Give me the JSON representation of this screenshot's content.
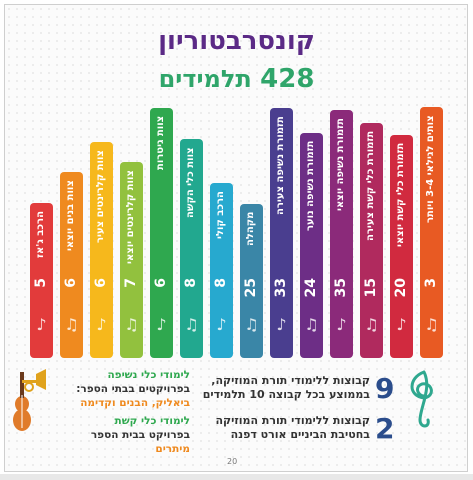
{
  "title": "קונסרבטוריון",
  "subtitle": {
    "number": "428",
    "text": "תלמידים"
  },
  "page_number": "20",
  "notes": {
    "woodwind_title": "לימודי כלי נשיפה",
    "woodwind_text1": "בפרויקטים בבתי הספר:",
    "woodwind_highlight": "ביאליק, הבנים וקדימה",
    "strings_title": "לימודי כלי קשת",
    "strings_text1": "בפרויקט בבית הספר",
    "strings_highlight": "מיתרים",
    "theory1_number": "9",
    "theory1_line1": "קבוצות ללימודי תורת המוזיקה,",
    "theory1_line2_a": "בממוצע בכל קבוצה",
    "theory1_line2_num": "10",
    "theory1_line2_b": "תלמידים",
    "theory2_number": "2",
    "theory2_line1": "קבוצות ללימודי תורת המוזיקה",
    "theory2_line2": "בחטיבת הביניים אורט דפנה"
  },
  "chart_data": {
    "type": "bar",
    "title": "קונסרבטוריון",
    "subtitle": "428 תלמידים",
    "categories": [
      "הרכב ג'אז",
      "צוות בנים יוצאי",
      "צוות קלרינטים צעיר",
      "צוות קלרינטים יוצאי",
      "צוות גיטרות",
      "צוות כלי הקשה",
      "הרכב קולי",
      "מקהלה",
      "תזמורת נשיפה צעירה",
      "תזמורת נשיפה נוער",
      "תזמורת נשיפה יוצאי",
      "תזמורת כלי קשת צעירה",
      "תזמורת כלי קשת יוצאי",
      "צותים לגילאי 3-4 ויותר"
    ],
    "values": [
      5,
      6,
      6,
      7,
      6,
      8,
      8,
      25,
      33,
      24,
      35,
      15,
      20,
      3
    ],
    "colors": [
      "#e23b3b",
      "#ef8a1f",
      "#f6b81c",
      "#92c13e",
      "#2fa84f",
      "#22a88f",
      "#27a9cf",
      "#3a86a7",
      "#4a3e8f",
      "#6d2e86",
      "#8b2a7a",
      "#b02a5e",
      "#d12a3f",
      "#e85a23"
    ],
    "ylim": [
      0,
      40
    ]
  }
}
